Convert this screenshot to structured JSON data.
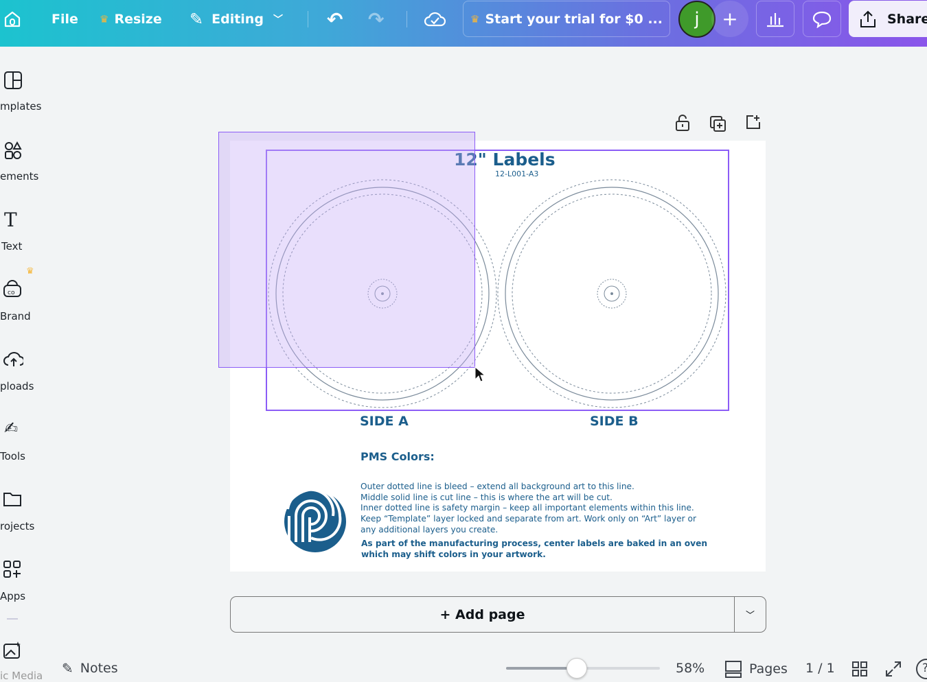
{
  "topbar": {
    "file": "File",
    "resize": "Resize",
    "editing": "Editing",
    "trial": "Start your trial for $0 ...",
    "avatar": "j",
    "share": "Share"
  },
  "sidebar": {
    "items": [
      {
        "label": "mplates",
        "icon": "templates-icon"
      },
      {
        "label": "ements",
        "icon": "elements-icon"
      },
      {
        "label": "Text",
        "icon": "text-icon"
      },
      {
        "label": "Brand",
        "icon": "brand-icon"
      },
      {
        "label": "ploads",
        "icon": "uploads-icon"
      },
      {
        "label": "Tools",
        "icon": "tools-icon"
      },
      {
        "label": "rojects",
        "icon": "projects-icon"
      },
      {
        "label": "Apps",
        "icon": "apps-icon"
      },
      {
        "label": "ic Media",
        "icon": "magic-media-icon"
      }
    ]
  },
  "design": {
    "title": "12\" Labels",
    "code": "12-L001-A3",
    "side_a": "SIDE A",
    "side_b": "SIDE B",
    "pms": "PMS Colors:",
    "notes": [
      "Outer dotted line is bleed – extend all background art to this line.",
      "Middle solid line is cut line – this is where the art will be cut.",
      "Inner dotted line is safety margin – keep all important elements within this line.",
      "Keep “Template” layer locked and separate from art. Work only on “Art” layer or",
      "any additional layers you create."
    ],
    "warning": [
      "As part of the manufacturing process, center labels are baked in an oven",
      "which may shift colors in your artwork."
    ]
  },
  "add_page": "+ Add page",
  "footer": {
    "notes": "Notes",
    "zoom": "58%",
    "zoom_value": 58,
    "pages": "Pages",
    "page_count": "1 / 1"
  },
  "colors": {
    "accent": "#8b5cf6",
    "text_blue": "#1b5e8c"
  }
}
